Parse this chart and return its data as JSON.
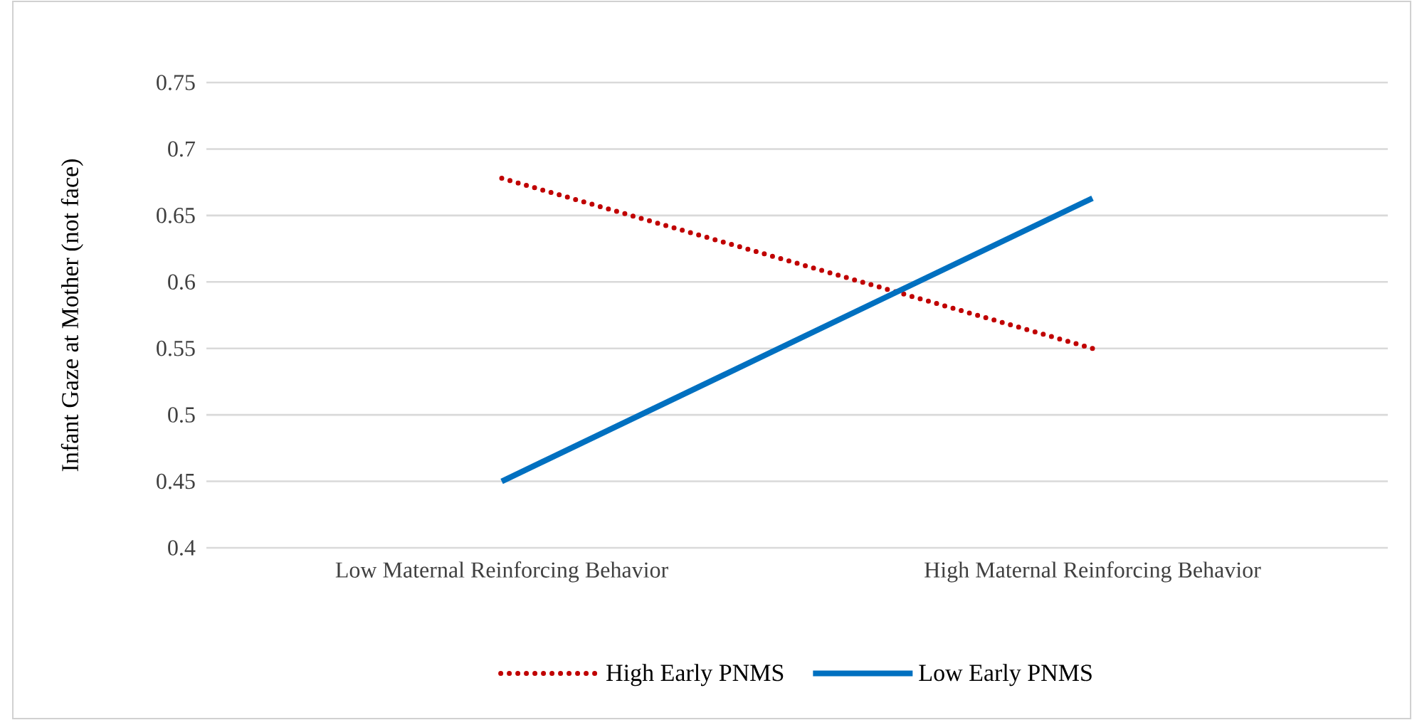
{
  "chart_data": {
    "type": "line",
    "ylabel": "Infant Gaze at Mother (not face)",
    "categories": [
      "Low Maternal Reinforcing Behavior",
      "High Maternal Reinforcing Behavior"
    ],
    "series": [
      {
        "name": "High Early PNMS",
        "color": "#c00000",
        "line_style": "dotted",
        "values": [
          0.678,
          0.55
        ]
      },
      {
        "name": "Low Early PNMS",
        "color": "#0070c0",
        "line_style": "solid",
        "values": [
          0.45,
          0.663
        ]
      }
    ],
    "ylim": [
      0.4,
      0.75
    ],
    "yticks": [
      0.4,
      0.45,
      0.5,
      0.55,
      0.6,
      0.65,
      0.7,
      0.75
    ],
    "grid": "y",
    "legend": "bottom"
  }
}
